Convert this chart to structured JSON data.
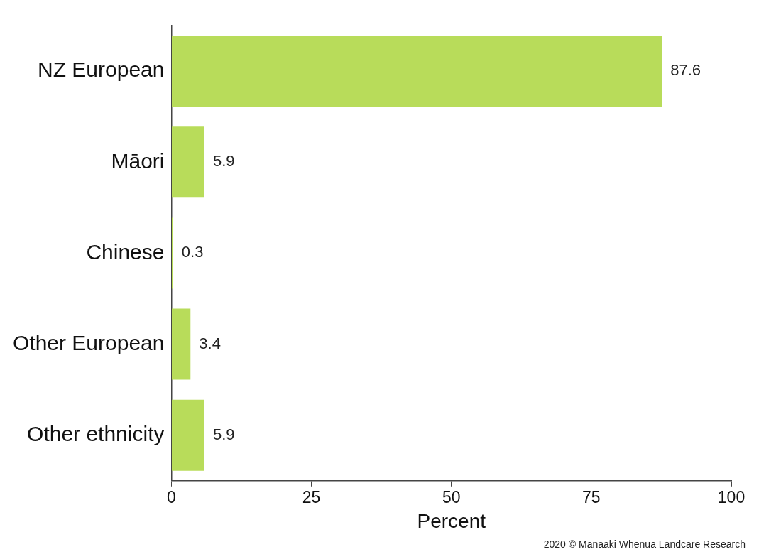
{
  "chart_data": {
    "type": "bar",
    "orientation": "horizontal",
    "categories": [
      "NZ European",
      "Māori",
      "Chinese",
      "Other European",
      "Other ethnicity"
    ],
    "values": [
      87.6,
      5.9,
      0.3,
      3.4,
      5.9
    ],
    "color": "#b8dc5a",
    "xlabel": "Percent",
    "xlim": [
      0,
      100
    ],
    "xticks": [
      0,
      25,
      50,
      75,
      100
    ],
    "grid": false,
    "legend": false,
    "data_labels": true,
    "annotations": [
      "2020 © Manaaki Whenua Landcare Research"
    ]
  }
}
